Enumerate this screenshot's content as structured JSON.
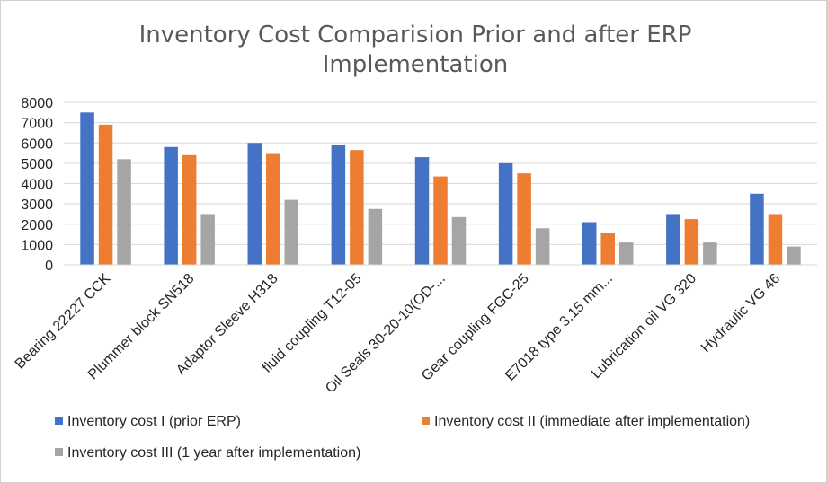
{
  "chart_data": {
    "type": "bar",
    "title": "Inventory Cost Comparision Prior and after ERP Implementation",
    "title_lines": [
      "Inventory Cost Comparision Prior and after ERP",
      "Implementation"
    ],
    "categories": [
      "Bearing 22227 CCK",
      "Plummer block SN518",
      "Adaptor Sleeve H318",
      "fluid coupling  T12-05",
      "Oil Seals 30-20-10(OD-...",
      "Gear coupling FGC-25",
      "E7018 type 3.15 mm...",
      "Lubrication oil VG 320",
      "Hydraulic VG 46"
    ],
    "series": [
      {
        "name": "Inventory cost I (prior ERP)",
        "color": "#4472C4",
        "values": [
          7500,
          5800,
          6000,
          5900,
          5300,
          5000,
          2100,
          2500,
          3500
        ]
      },
      {
        "name": "Inventory cost II (immediate after implementation)",
        "color": "#ED7D31",
        "values": [
          6900,
          5400,
          5500,
          5650,
          4350,
          4500,
          1550,
          2250,
          2500
        ]
      },
      {
        "name": "Inventory cost III (1 year after implementation)",
        "color": "#A5A5A5",
        "values": [
          5200,
          2500,
          3200,
          2750,
          2350,
          1800,
          1100,
          1100,
          900
        ]
      }
    ],
    "ylim": [
      0,
      8000
    ],
    "yticks": [
      "0",
      "1000",
      "2000",
      "3000",
      "4000",
      "5000",
      "6000",
      "7000",
      "8000"
    ],
    "grid": true,
    "legend_position": "bottom"
  }
}
